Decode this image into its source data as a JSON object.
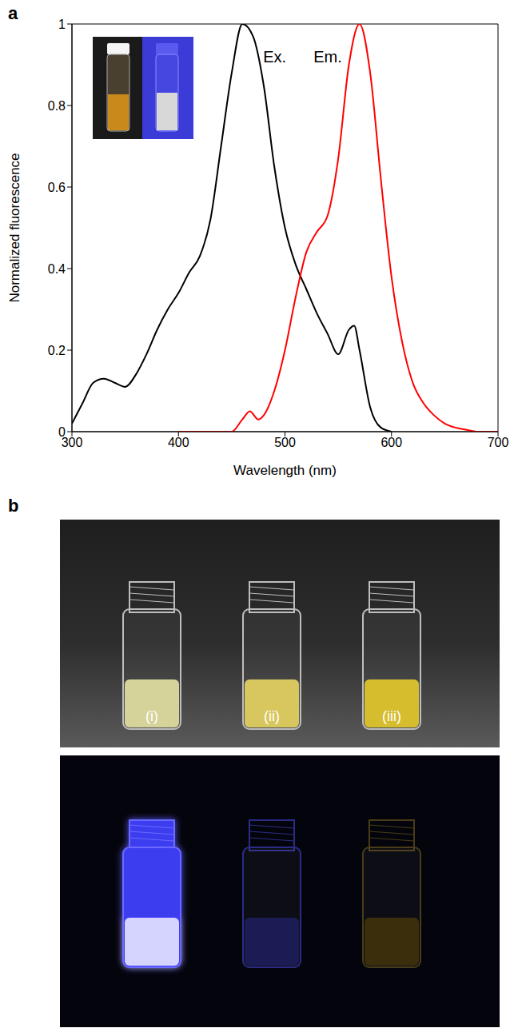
{
  "panel_labels": [
    "a",
    "b"
  ],
  "chart_data": {
    "type": "line",
    "x_label": "Wavelength (nm)",
    "y_label": "Normalized fluorescence",
    "xlim": [
      300,
      700
    ],
    "xticks": [
      300,
      400,
      500,
      600,
      700
    ],
    "ylim": [
      0,
      1
    ],
    "yticks": [
      0,
      0.2,
      0.4,
      0.6,
      0.8,
      1
    ],
    "grid": false,
    "series": [
      {
        "name": "Ex.",
        "color": "#000000",
        "x": [
          300,
          310,
          320,
          330,
          340,
          350,
          360,
          370,
          380,
          390,
          400,
          410,
          420,
          430,
          440,
          450,
          460,
          470,
          480,
          490,
          500,
          510,
          520,
          530,
          540,
          550,
          560,
          565,
          570,
          580,
          590,
          600
        ],
        "values": [
          0.02,
          0.07,
          0.12,
          0.13,
          0.12,
          0.11,
          0.14,
          0.19,
          0.25,
          0.3,
          0.34,
          0.39,
          0.43,
          0.52,
          0.7,
          0.88,
          1.0,
          0.97,
          0.85,
          0.65,
          0.5,
          0.41,
          0.35,
          0.29,
          0.24,
          0.19,
          0.25,
          0.26,
          0.2,
          0.06,
          0.01,
          0
        ]
      },
      {
        "name": "Em.",
        "color": "#ff0000",
        "x": [
          400,
          420,
          440,
          450,
          460,
          467,
          475,
          480,
          490,
          500,
          510,
          520,
          530,
          540,
          550,
          560,
          570,
          580,
          590,
          600,
          610,
          620,
          630,
          640,
          650,
          660,
          670,
          680,
          690,
          700
        ],
        "values": [
          0,
          0,
          0,
          0,
          0.03,
          0.05,
          0.03,
          0.04,
          0.1,
          0.2,
          0.33,
          0.44,
          0.49,
          0.53,
          0.67,
          0.9,
          1.0,
          0.88,
          0.62,
          0.38,
          0.22,
          0.12,
          0.07,
          0.04,
          0.02,
          0.01,
          0.005,
          0,
          0,
          0
        ]
      }
    ]
  },
  "photo": {
    "vial_labels": [
      "(i)",
      "(ii)",
      "(iii)"
    ]
  }
}
